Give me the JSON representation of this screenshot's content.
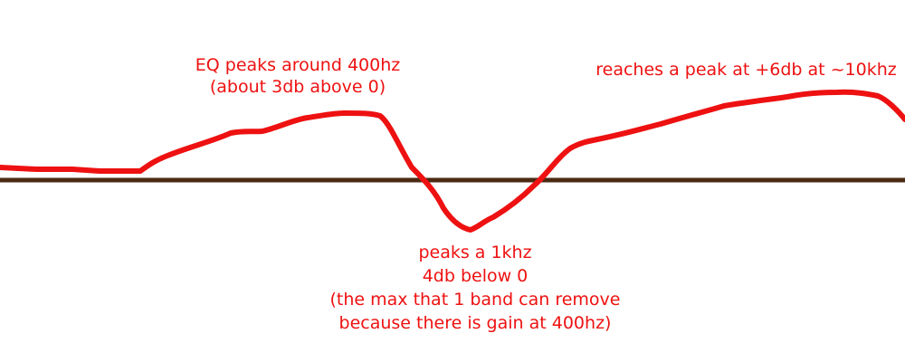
{
  "colors": {
    "baseline": "#4b2a14",
    "curve": "#ee1111",
    "annotation_text": "#ee1111",
    "background": "#ffffff"
  },
  "annotations": {
    "peak_400hz": {
      "lines": [
        "EQ peaks around 400hz",
        "(about 3db above 0)"
      ]
    },
    "dip_1khz": {
      "lines": [
        "peaks a 1khz",
        "4db below 0",
        "(the max  that 1 band can remove",
        "because there is gain at 400hz)"
      ]
    },
    "peak_10khz": {
      "lines": [
        "reaches a peak at +6db at ~10khz"
      ]
    }
  }
}
